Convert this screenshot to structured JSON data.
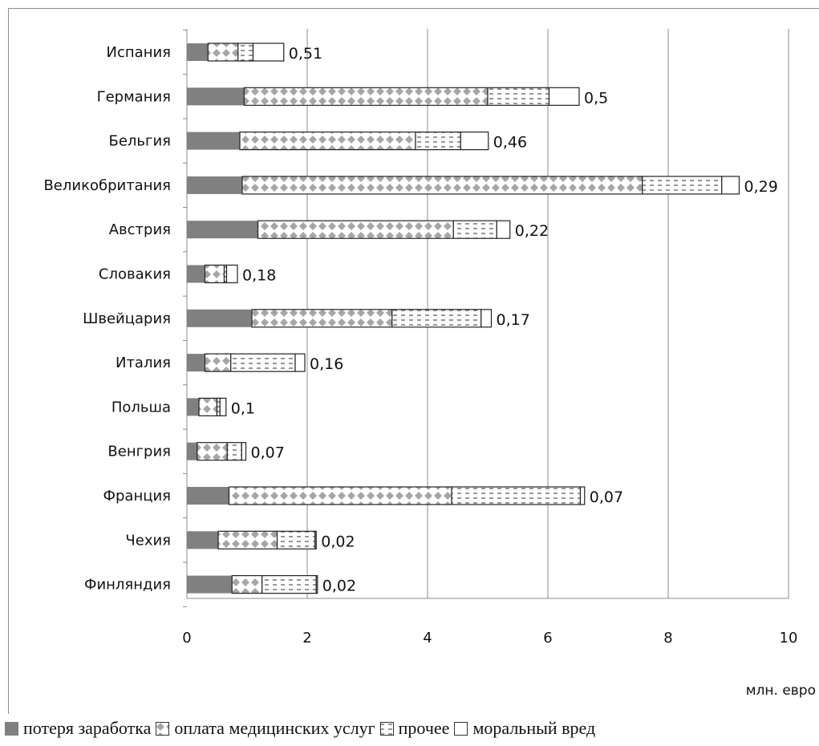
{
  "chart_data": {
    "type": "bar",
    "orientation": "horizontal",
    "stacked": true,
    "categories": [
      "Испания",
      "Германия",
      "Бельгия",
      "Великобритания",
      "Австрия",
      "Словакия",
      "Швейцария",
      "Италия",
      "Польша",
      "Венгрия",
      "Франция",
      "Чехия",
      "Финляндия"
    ],
    "series": [
      {
        "name": "потеря заработка",
        "fill": "solid",
        "color": "#808080",
        "values": [
          0.35,
          0.95,
          0.88,
          0.92,
          1.18,
          0.3,
          1.08,
          0.3,
          0.2,
          0.17,
          0.7,
          0.52,
          0.75
        ]
      },
      {
        "name": "оплата медицинских услуг",
        "fill": "diamond-check",
        "color": "#a6a6a6",
        "values": [
          0.5,
          4.05,
          2.92,
          6.65,
          3.25,
          0.32,
          2.33,
          0.43,
          0.3,
          0.5,
          3.7,
          0.98,
          0.5
        ]
      },
      {
        "name": "прочее",
        "fill": "dashed-lines",
        "color": "#808080",
        "values": [
          0.25,
          1.02,
          0.75,
          1.32,
          0.72,
          0.04,
          1.48,
          1.07,
          0.05,
          0.24,
          2.14,
          0.63,
          0.9
        ]
      },
      {
        "name": "моральный вред",
        "fill": "white",
        "color": "#ffffff",
        "values": [
          0.51,
          0.5,
          0.46,
          0.29,
          0.22,
          0.18,
          0.17,
          0.16,
          0.1,
          0.07,
          0.07,
          0.02,
          0.02
        ]
      }
    ],
    "data_labels": [
      "0,51",
      "0,5",
      "0,46",
      "0,29",
      "0,22",
      "0,18",
      "0,17",
      "0,16",
      "0,1",
      "0,07",
      "0,07",
      "0,02",
      "0,02"
    ],
    "xlim": [
      0,
      10
    ],
    "xticks": [
      0,
      2,
      4,
      6,
      8,
      10
    ],
    "xlabel": "млн. евро",
    "ylabel": "",
    "grid": "vertical",
    "legend_position": "bottom"
  },
  "legend": {
    "items": [
      "потеря заработка",
      "оплата медицинских услуг",
      "прочее",
      "моральный вред"
    ]
  },
  "axis": {
    "unit": "млн. евро"
  }
}
